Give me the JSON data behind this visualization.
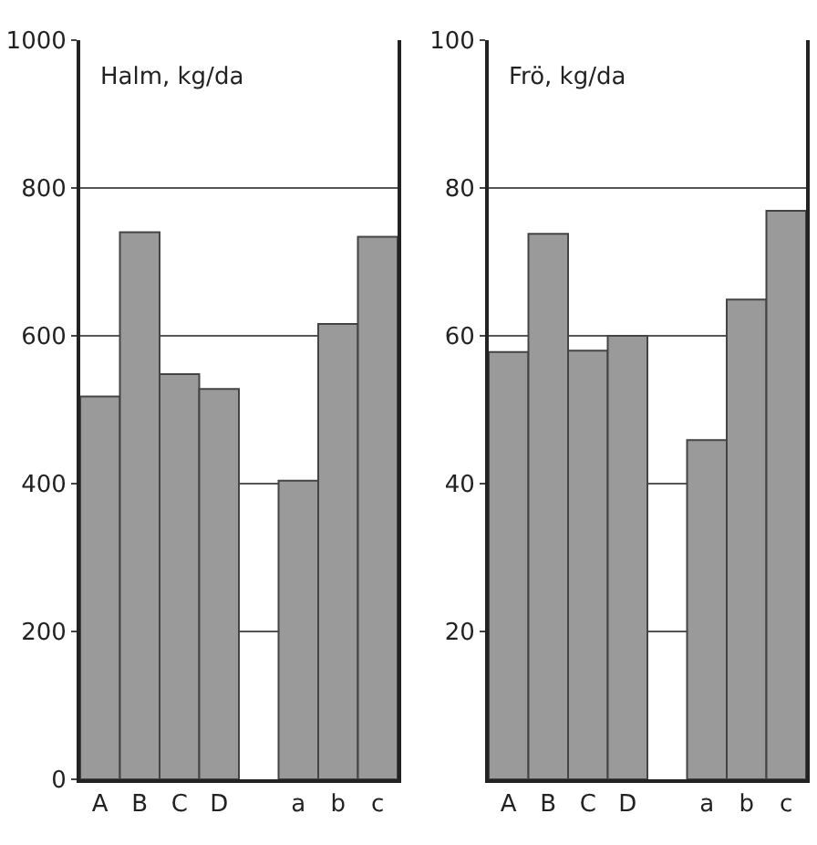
{
  "chart_data": [
    {
      "type": "bar",
      "title": "Halm, kg/da",
      "categories": [
        "A",
        "B",
        "C",
        "D",
        null,
        "a",
        "b",
        "c"
      ],
      "values": [
        518,
        740,
        548,
        528,
        null,
        404,
        616,
        734
      ],
      "color": "#9a9a9a",
      "ylim": [
        0,
        1000
      ],
      "yticks": [
        0,
        200,
        400,
        600,
        800,
        1000
      ],
      "grid": "y"
    },
    {
      "type": "bar",
      "title": "Frö, kg/da",
      "categories": [
        "A",
        "B",
        "C",
        "D",
        null,
        "a",
        "b",
        "c"
      ],
      "values": [
        57.8,
        73.8,
        58,
        60,
        null,
        45.9,
        64.9,
        76.9
      ],
      "color": "#9a9a9a",
      "ylim": [
        0,
        100
      ],
      "yticks": [
        20,
        40,
        60,
        80,
        100
      ],
      "grid": "y"
    }
  ]
}
